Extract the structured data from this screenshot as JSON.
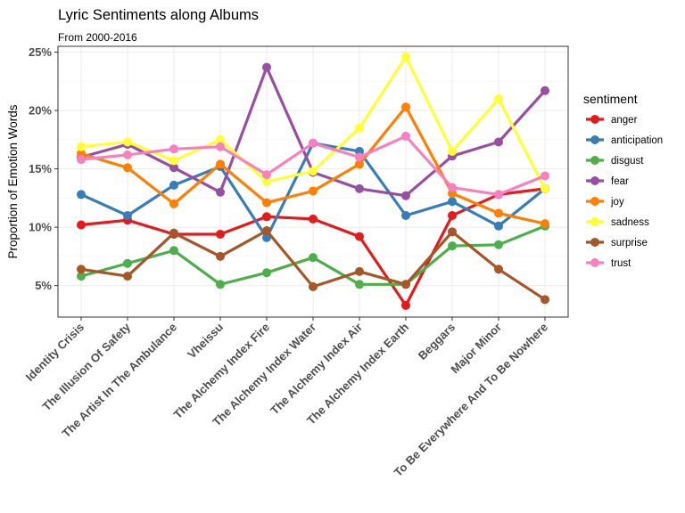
{
  "chart_data": {
    "type": "line",
    "title": "Lyric Sentiments along Albums",
    "subtitle": "From 2000-2016",
    "xlabel": "",
    "ylabel": "Proportion of Emotion Words",
    "categories": [
      "Identity Crisis",
      "The Illusion Of Safety",
      "The Artist In The Ambulance",
      "Vheissu",
      "The Alchemy Index Fire",
      "The Alchemy Index Water",
      "The Alchemy Index Air",
      "The Alchemy Index Earth",
      "Beggars",
      "Major Minor",
      "To Be Everywhere And To Be Nowhere"
    ],
    "ylim": [
      0.023,
      0.255
    ],
    "yticks": [
      0.05,
      0.1,
      0.15,
      0.2,
      0.25
    ],
    "ytick_labels": [
      "5%",
      "10%",
      "15%",
      "20%",
      "25%"
    ],
    "grid": true,
    "legend": {
      "title": "sentiment",
      "position": "right"
    },
    "series": [
      {
        "name": "anger",
        "color": "#E41A1C",
        "values": [
          0.102,
          0.106,
          0.094,
          0.094,
          0.109,
          0.107,
          0.092,
          0.033,
          0.11,
          0.128,
          0.133
        ]
      },
      {
        "name": "anticipation",
        "color": "#377EB8",
        "values": [
          0.128,
          0.11,
          0.136,
          0.152,
          0.091,
          0.172,
          0.165,
          0.11,
          0.122,
          0.101,
          0.133
        ]
      },
      {
        "name": "disgust",
        "color": "#4DAF4A",
        "values": [
          0.058,
          0.069,
          0.08,
          0.051,
          0.061,
          0.074,
          0.051,
          0.051,
          0.084,
          0.085,
          0.101
        ]
      },
      {
        "name": "fear",
        "color": "#984EA3",
        "values": [
          0.16,
          0.171,
          0.151,
          0.13,
          0.237,
          0.147,
          0.133,
          0.127,
          0.161,
          0.173,
          0.217
        ]
      },
      {
        "name": "joy",
        "color": "#FF7F00",
        "values": [
          0.163,
          0.151,
          0.12,
          0.154,
          0.121,
          0.131,
          0.154,
          0.203,
          0.129,
          0.112,
          0.103
        ]
      },
      {
        "name": "sadness",
        "color": "#FFFF33",
        "values": [
          0.169,
          0.173,
          0.157,
          0.175,
          0.139,
          0.148,
          0.185,
          0.246,
          0.165,
          0.21,
          0.133
        ]
      },
      {
        "name": "surprise",
        "color": "#A65628",
        "values": [
          0.064,
          0.058,
          0.095,
          0.075,
          0.097,
          0.049,
          0.062,
          0.051,
          0.096,
          0.064,
          0.038
        ]
      },
      {
        "name": "trust",
        "color": "#F781BF",
        "values": [
          0.158,
          0.162,
          0.167,
          0.169,
          0.145,
          0.172,
          0.16,
          0.178,
          0.134,
          0.128,
          0.144
        ]
      }
    ]
  }
}
